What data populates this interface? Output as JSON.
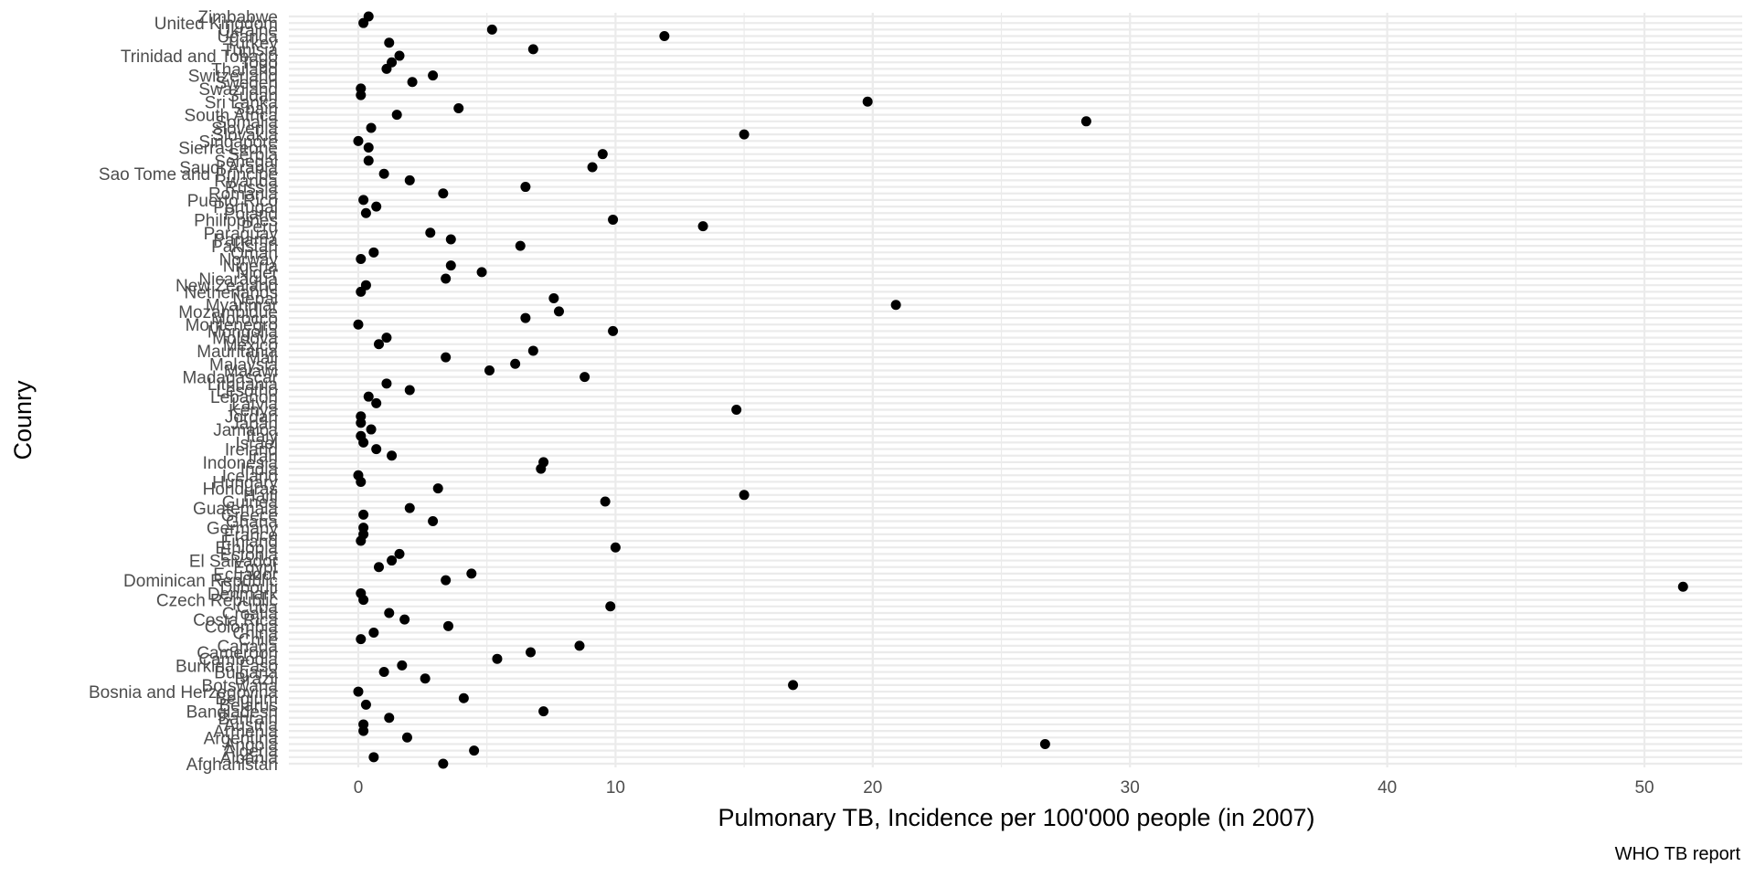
{
  "chart_data": {
    "type": "scatter",
    "xlabel": "Pulmonary TB, Incidence per 100'000 people (in 2007)",
    "ylabel": "Counry",
    "caption": "WHO TB report",
    "xlim": [
      -2.7,
      53.8
    ],
    "xticks": [
      0,
      10,
      20,
      30,
      40,
      50
    ],
    "grid": true,
    "legend": "none",
    "point_color": "#000000",
    "grid_color": "#ebebeb",
    "points": [
      {
        "country": "Afghanistan",
        "value": 3.3
      },
      {
        "country": "Albania",
        "value": 0.6
      },
      {
        "country": "Algeria",
        "value": 4.5
      },
      {
        "country": "Angola",
        "value": 26.7
      },
      {
        "country": "Argentina",
        "value": 1.9
      },
      {
        "country": "Armenia",
        "value": 0.2
      },
      {
        "country": "Austria",
        "value": 0.2
      },
      {
        "country": "Bahrain",
        "value": 1.2
      },
      {
        "country": "Bangladesh",
        "value": 7.2
      },
      {
        "country": "Belarus",
        "value": 0.3
      },
      {
        "country": "Belgium",
        "value": 4.1
      },
      {
        "country": "Bosnia and Herzegovina",
        "value": 0.0
      },
      {
        "country": "Botswana",
        "value": 16.9
      },
      {
        "country": "Brazil",
        "value": 2.6
      },
      {
        "country": "Bulgaria",
        "value": 1.0
      },
      {
        "country": "Burkina Faso",
        "value": 1.7
      },
      {
        "country": "Cambodia",
        "value": 5.4
      },
      {
        "country": "Cameroon",
        "value": 6.7
      },
      {
        "country": "Canada",
        "value": 8.6
      },
      {
        "country": "Chile",
        "value": 0.1
      },
      {
        "country": "China",
        "value": 0.6
      },
      {
        "country": "Colombia",
        "value": 3.5
      },
      {
        "country": "Costa Rica",
        "value": 1.8
      },
      {
        "country": "Croatia",
        "value": 1.2
      },
      {
        "country": "Cuba",
        "value": 9.8
      },
      {
        "country": "Czech Republic",
        "value": 0.2
      },
      {
        "country": "Denmark",
        "value": 0.1
      },
      {
        "country": "Djibouti",
        "value": 51.5
      },
      {
        "country": "Dominican Republic",
        "value": 3.4
      },
      {
        "country": "Ecuador",
        "value": 4.4
      },
      {
        "country": "Egypt",
        "value": 0.8
      },
      {
        "country": "El Salvador",
        "value": 1.3
      },
      {
        "country": "Estonia",
        "value": 1.6
      },
      {
        "country": "Ethiopia",
        "value": 10.0
      },
      {
        "country": "Finland",
        "value": 0.1
      },
      {
        "country": "France",
        "value": 0.2
      },
      {
        "country": "Germany",
        "value": 0.2
      },
      {
        "country": "Ghana",
        "value": 2.9
      },
      {
        "country": "Greece",
        "value": 0.2
      },
      {
        "country": "Guatemala",
        "value": 2.0
      },
      {
        "country": "Guinea",
        "value": 9.6
      },
      {
        "country": "Haiti",
        "value": 15.0
      },
      {
        "country": "Honduras",
        "value": 3.1
      },
      {
        "country": "Hungary",
        "value": 0.1
      },
      {
        "country": "Iceland",
        "value": 0.0
      },
      {
        "country": "India",
        "value": 7.1
      },
      {
        "country": "Indonesia",
        "value": 7.2
      },
      {
        "country": "Iran",
        "value": 1.3
      },
      {
        "country": "Ireland",
        "value": 0.7
      },
      {
        "country": "Israel",
        "value": 0.2
      },
      {
        "country": "Italy",
        "value": 0.1
      },
      {
        "country": "Jamaica",
        "value": 0.5
      },
      {
        "country": "Japan",
        "value": 0.1
      },
      {
        "country": "Jordan",
        "value": 0.1
      },
      {
        "country": "Kenya",
        "value": 14.7
      },
      {
        "country": "Latvia",
        "value": 0.7
      },
      {
        "country": "Lebanon",
        "value": 0.4
      },
      {
        "country": "Lesotho",
        "value": 2.0
      },
      {
        "country": "Lithuania",
        "value": 1.1
      },
      {
        "country": "Madagascar",
        "value": 8.8
      },
      {
        "country": "Malawi",
        "value": 5.1
      },
      {
        "country": "Malaysia",
        "value": 6.1
      },
      {
        "country": "Mali",
        "value": 3.4
      },
      {
        "country": "Mauritania",
        "value": 6.8
      },
      {
        "country": "Mexico",
        "value": 0.8
      },
      {
        "country": "Moldova",
        "value": 1.1
      },
      {
        "country": "Mongolia",
        "value": 9.9
      },
      {
        "country": "Montenegro",
        "value": 0.0
      },
      {
        "country": "Morocco",
        "value": 6.5
      },
      {
        "country": "Mozambique",
        "value": 7.8
      },
      {
        "country": "Myanmar",
        "value": 20.9
      },
      {
        "country": "Nepal",
        "value": 7.6
      },
      {
        "country": "Netherlands",
        "value": 0.1
      },
      {
        "country": "New Zealand",
        "value": 0.3
      },
      {
        "country": "Nicaragua",
        "value": 3.4
      },
      {
        "country": "Niger",
        "value": 4.8
      },
      {
        "country": "Nigeria",
        "value": 3.6
      },
      {
        "country": "Norway",
        "value": 0.1
      },
      {
        "country": "Oman",
        "value": 0.6
      },
      {
        "country": "Pakistan",
        "value": 6.3
      },
      {
        "country": "Panama",
        "value": 3.6
      },
      {
        "country": "Paraguay",
        "value": 2.8
      },
      {
        "country": "Peru",
        "value": 13.4
      },
      {
        "country": "Philippines",
        "value": 9.9
      },
      {
        "country": "Poland",
        "value": 0.3
      },
      {
        "country": "Portugal",
        "value": 0.7
      },
      {
        "country": "Puerto Rico",
        "value": 0.2
      },
      {
        "country": "Romania",
        "value": 3.3
      },
      {
        "country": "Russia",
        "value": 6.5
      },
      {
        "country": "Rwanda",
        "value": 2.0
      },
      {
        "country": "Sao Tome and Principe",
        "value": 1.0
      },
      {
        "country": "Saudi Arabia",
        "value": 9.1
      },
      {
        "country": "Senegal",
        "value": 0.4
      },
      {
        "country": "Serbia",
        "value": 9.5
      },
      {
        "country": "Sierra Leone",
        "value": 0.4
      },
      {
        "country": "Singapore",
        "value": 0.0
      },
      {
        "country": "Slovakia",
        "value": 15.0
      },
      {
        "country": "Slovenia",
        "value": 0.5
      },
      {
        "country": "Somalia",
        "value": 28.3
      },
      {
        "country": "South Africa",
        "value": 1.5
      },
      {
        "country": "Spain",
        "value": 3.9
      },
      {
        "country": "Sri Lanka",
        "value": 19.8
      },
      {
        "country": "Sudan",
        "value": 0.1
      },
      {
        "country": "Swaziland",
        "value": 0.1
      },
      {
        "country": "Sweden",
        "value": 2.1
      },
      {
        "country": "Switzerland",
        "value": 2.9
      },
      {
        "country": "Thailand",
        "value": 1.1
      },
      {
        "country": "Togo",
        "value": 1.3
      },
      {
        "country": "Trinidad and Tobago",
        "value": 1.6
      },
      {
        "country": "Tunisia",
        "value": 6.8
      },
      {
        "country": "Turkey",
        "value": 1.2
      },
      {
        "country": "Uganda",
        "value": 11.9
      },
      {
        "country": "Ukraine",
        "value": 5.2
      },
      {
        "country": "United Kingdom",
        "value": 0.2
      },
      {
        "country": "Zimbabwe",
        "value": 0.4
      }
    ]
  }
}
